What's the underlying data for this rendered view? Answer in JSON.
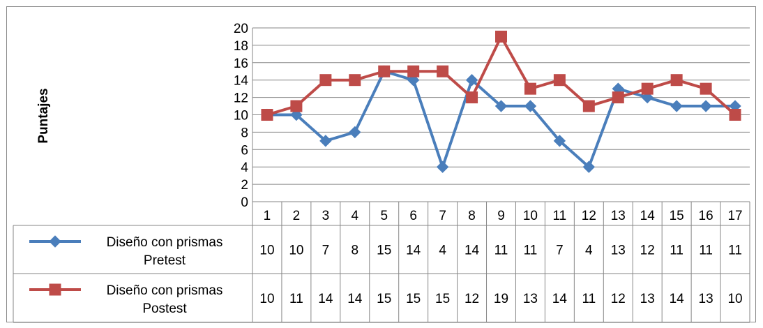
{
  "chart_data": {
    "type": "line",
    "title": "",
    "xlabel": "",
    "ylabel": "Puntajes",
    "ylim": [
      0,
      20
    ],
    "ytick_step": 2,
    "grid": true,
    "categories": [
      "1",
      "2",
      "3",
      "4",
      "5",
      "6",
      "7",
      "8",
      "9",
      "10",
      "11",
      "12",
      "13",
      "14",
      "15",
      "16",
      "17"
    ],
    "series": [
      {
        "name": "Diseño con prismas Pretest",
        "name_lines": [
          "Diseño con prismas",
          "Pretest"
        ],
        "color": "#4A7EBB",
        "marker": "diamond",
        "values": [
          10,
          10,
          7,
          8,
          15,
          14,
          4,
          14,
          11,
          11,
          7,
          4,
          13,
          12,
          11,
          11,
          11
        ]
      },
      {
        "name": "Diseño con prismas Postest",
        "name_lines": [
          "Diseño con prismas",
          "Postest"
        ],
        "color": "#BE4B48",
        "marker": "square",
        "values": [
          10,
          11,
          14,
          14,
          15,
          15,
          15,
          12,
          19,
          13,
          14,
          11,
          12,
          13,
          14,
          13,
          10
        ]
      }
    ],
    "legend": "data-table"
  }
}
